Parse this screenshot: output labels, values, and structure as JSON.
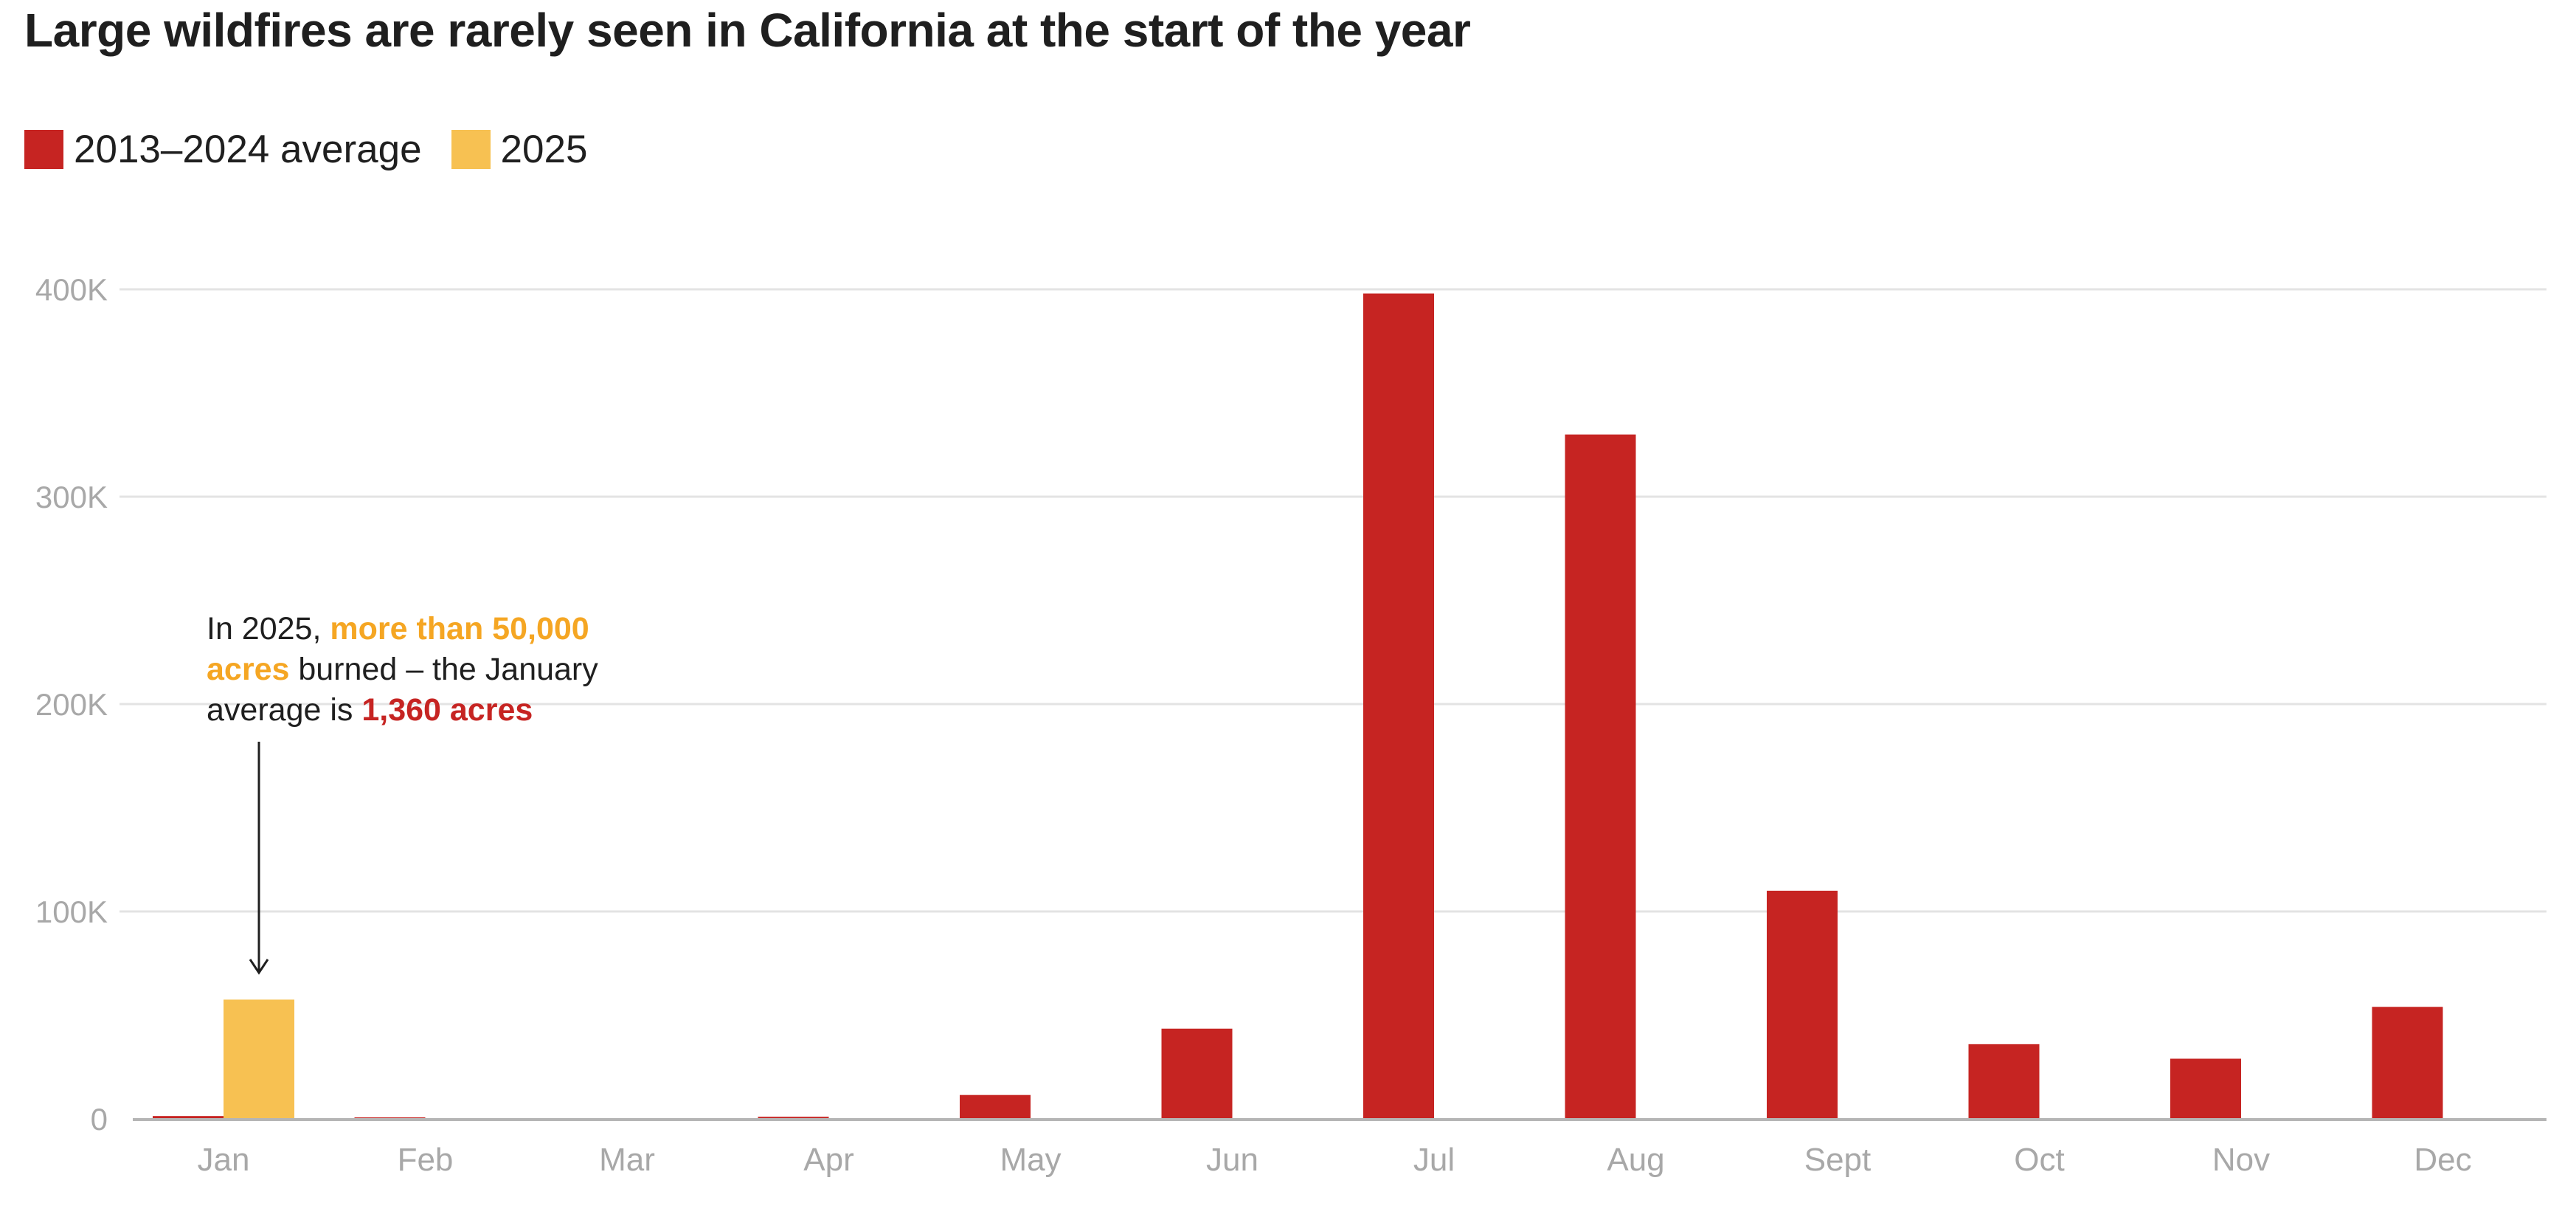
{
  "title": "Large wildfires are rarely seen in California at the start of the year",
  "legend": [
    {
      "label": "2013–2024 average",
      "color": "#c62422"
    },
    {
      "label": "2025",
      "color": "#f7c152"
    }
  ],
  "annotation": {
    "prefix": "In 2025, ",
    "highlight_2025": "more than 50,000 acres",
    "middle": " burned – the January average is ",
    "highlight_avg": "1,360 acres"
  },
  "chart_data": {
    "type": "bar",
    "categories": [
      "Jan",
      "Feb",
      "Mar",
      "Apr",
      "May",
      "Jun",
      "Jul",
      "Aug",
      "Sept",
      "Oct",
      "Nov",
      "Dec"
    ],
    "series": [
      {
        "name": "2013–2024 average",
        "color": "#c62422",
        "values": [
          1360,
          700,
          0,
          1000,
          11500,
          43500,
          398000,
          330000,
          110000,
          36000,
          29000,
          54000
        ]
      },
      {
        "name": "2025",
        "color": "#f7c152",
        "values": [
          57500,
          null,
          null,
          null,
          null,
          null,
          null,
          null,
          null,
          null,
          null,
          null
        ]
      }
    ],
    "ylim": [
      0,
      400000
    ],
    "yticks": [
      {
        "value": 0,
        "label": "0"
      },
      {
        "value": 100000,
        "label": "100K"
      },
      {
        "value": 200000,
        "label": "200K"
      },
      {
        "value": 300000,
        "label": "300K"
      },
      {
        "value": 400000,
        "label": "400K"
      }
    ],
    "grid": true,
    "legend_position": "top-left"
  }
}
